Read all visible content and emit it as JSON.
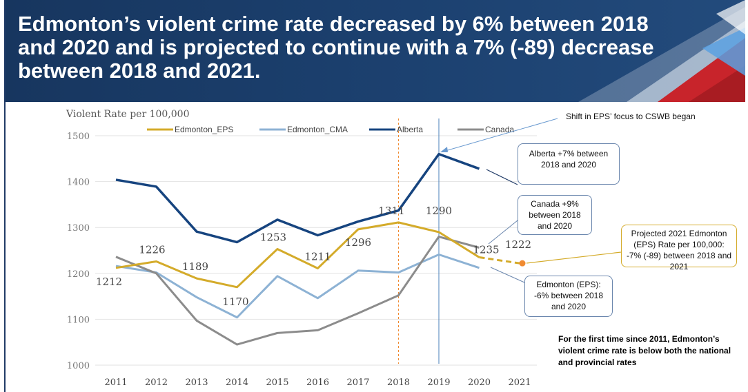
{
  "banner": {
    "title": "Edmonton’s violent crime rate decreased by 6% between 2018 and 2020 and is projected to continue with a 7% (-89) decrease between 2018 and 2021."
  },
  "colors": {
    "edmonton_eps": "#d4ab2a",
    "edmonton_cma": "#8db2d4",
    "alberta": "#16447f",
    "canada": "#8c8c8c",
    "projection_marker": "#f08a30",
    "banner_bg": "#1c4170"
  },
  "annotations": {
    "shift_label": "Shift in EPS’ focus to CSWB began",
    "alberta_callout": "Alberta +7% between 2018 and 2020",
    "canada_callout": "Canada +9% between 2018 and 2020",
    "projected_callout": "Projected 2021 Edmonton (EPS) Rate per 100,000: -7% (-89) between 2018 and 2021",
    "eps_callout": "Edmonton (EPS): -6% between 2018 and 2020",
    "footnote": "For the first time since 2011, Edmonton’s violent crime rate is below both the national and provincial rates"
  },
  "chart_data": {
    "type": "line",
    "title": "",
    "ylabel": "Violent Rate per 100,000",
    "xlabel": "",
    "ylim": [
      1000,
      1500
    ],
    "yticks": [
      "1000",
      "1100",
      "1200",
      "1300",
      "1400",
      "1500"
    ],
    "categories": [
      "2011",
      "2012",
      "2013",
      "2014",
      "2015",
      "2016",
      "2017",
      "2018",
      "2019",
      "2020",
      "2021"
    ],
    "legend_position": "top",
    "grid": true,
    "series": [
      {
        "name": "Edmonton_EPS",
        "values": [
          1212,
          1226,
          1189,
          1170,
          1253,
          1211,
          1296,
          1311,
          1290,
          1235,
          null
        ],
        "labels": [
          "1212",
          "1226",
          "1189",
          "1170",
          "1253",
          "1211",
          "1296",
          "1311",
          "1290",
          "1235",
          ""
        ]
      },
      {
        "name": "Edmonton_CMA",
        "values": [
          1216,
          1202,
          1148,
          1104,
          1194,
          1146,
          1206,
          1202,
          1241,
          1212,
          null
        ]
      },
      {
        "name": "Alberta",
        "values": [
          1404,
          1389,
          1291,
          1268,
          1317,
          1283,
          1313,
          1337,
          1460,
          1428,
          null
        ]
      },
      {
        "name": "Canada",
        "values": [
          1236,
          1200,
          1097,
          1045,
          1070,
          1076,
          1113,
          1152,
          1280,
          1256,
          null
        ]
      }
    ],
    "projection": {
      "from_category": "2020",
      "to_category": "2021",
      "from_value": 1235,
      "to_value": 1222,
      "label": "1222"
    },
    "vertical_markers": [
      {
        "category": "2018",
        "style": "dashed",
        "color": "#f08a30"
      },
      {
        "category": "2019",
        "style": "solid",
        "color": "#4a7fb8"
      }
    ]
  }
}
